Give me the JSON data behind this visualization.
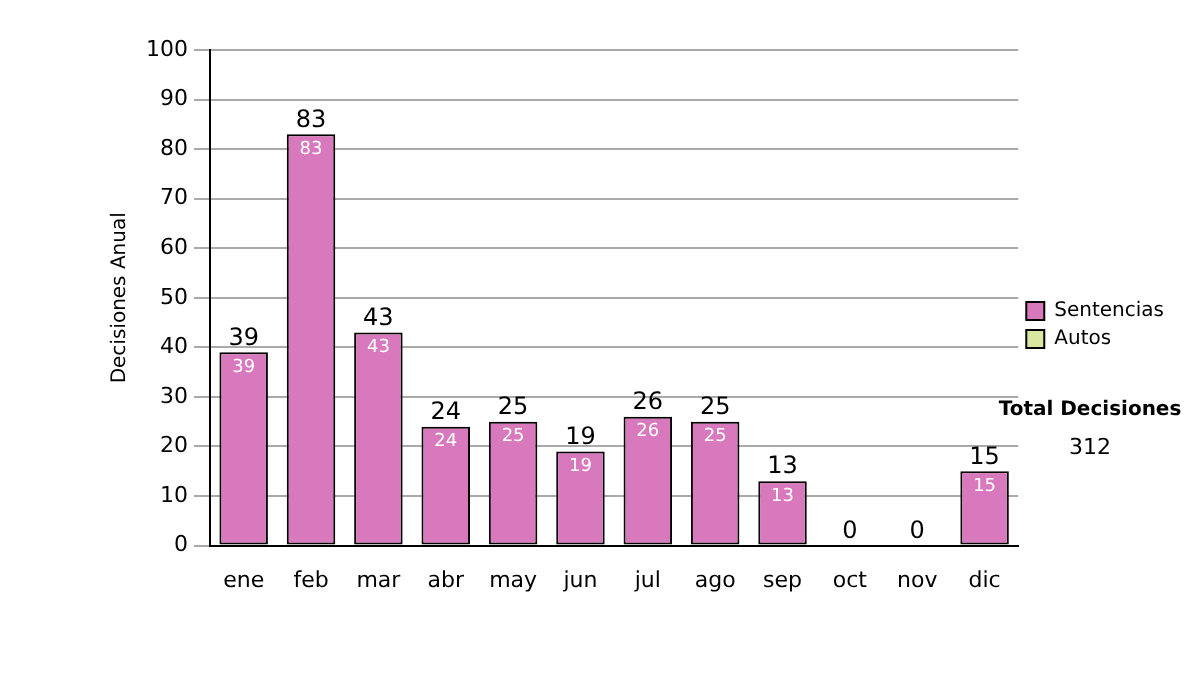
{
  "chart_data": {
    "type": "bar",
    "ylabel": "Decisiones Anual",
    "categories": [
      "ene",
      "feb",
      "mar",
      "abr",
      "may",
      "jun",
      "jul",
      "ago",
      "sep",
      "oct",
      "nov",
      "dic"
    ],
    "series": [
      {
        "name": "Sentencias",
        "color": "#d878bd",
        "values": [
          39,
          83,
          43,
          24,
          25,
          19,
          26,
          25,
          13,
          0,
          0,
          15
        ],
        "value_labels": [
          "39",
          "83",
          "43",
          "24",
          "25",
          "19",
          "26",
          "25",
          "13",
          null,
          null,
          "15"
        ]
      },
      {
        "name": "Autos",
        "color": "#d8e8a0",
        "values": [
          0,
          0,
          0,
          0,
          0,
          0,
          0,
          0,
          0,
          0,
          0,
          0
        ]
      }
    ],
    "stacked": true,
    "totals": [
      "39",
      "83",
      "43",
      "24",
      "25",
      "19",
      "26",
      "25",
      "13",
      "0",
      "0",
      "15"
    ],
    "ylim": [
      0,
      100
    ],
    "yticks": [
      0,
      10,
      20,
      30,
      40,
      50,
      60,
      70,
      80,
      90,
      100
    ],
    "grid": "y",
    "legend": "right",
    "annotations": [
      "Total Decisiones",
      "312"
    ]
  }
}
